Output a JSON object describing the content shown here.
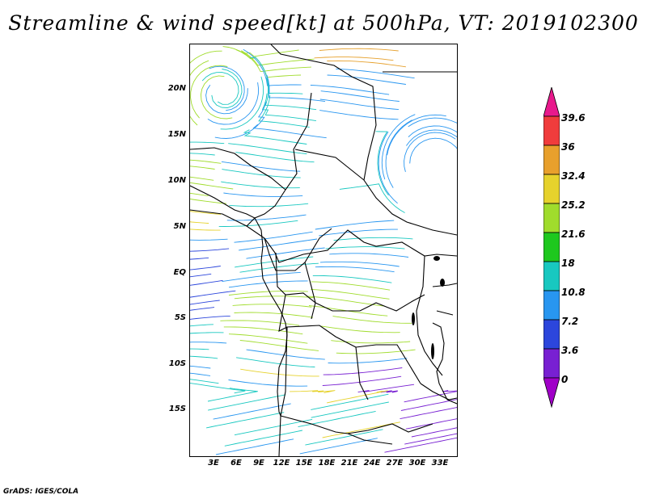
{
  "title": "Streamline & wind speed[kt] at 500hPa, VT: 2019102300",
  "footer": "GrADS: IGES/COLA",
  "map": {
    "lat_labels": [
      "20N",
      "15N",
      "10N",
      "5N",
      "EQ",
      "5S",
      "10S",
      "15S"
    ],
    "lon_labels": [
      "3E",
      "6E",
      "9E",
      "12E",
      "15E",
      "18E",
      "21E",
      "24E",
      "27E",
      "30E",
      "33E"
    ]
  },
  "colorbar": {
    "labels": [
      "39.6",
      "36",
      "32.4",
      "25.2",
      "21.6",
      "18",
      "10.8",
      "7.2",
      "3.6",
      "0"
    ],
    "colors": [
      "#e8198c",
      "#f03c3c",
      "#e8a02c",
      "#e6d22c",
      "#a0dc2c",
      "#1ec81e",
      "#18c8c0",
      "#2896f0",
      "#2c46dc",
      "#7820d2",
      "#a000c8"
    ]
  }
}
